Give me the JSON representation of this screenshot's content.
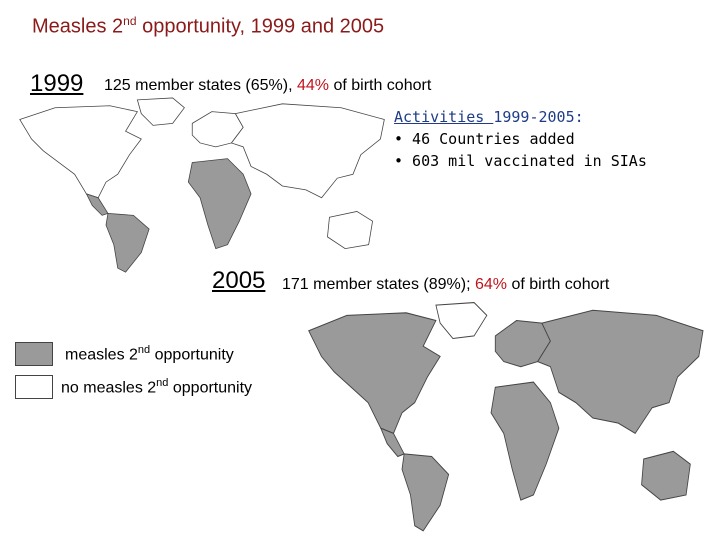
{
  "title": {
    "pre": "Measles 2",
    "sup": "nd",
    "post": " opportunity, 1999 and 2005"
  },
  "panel_1999": {
    "year": "1999",
    "stats_pre": "125 member states (65%), ",
    "stats_pct": "44%",
    "stats_post": " of birth cohort"
  },
  "activities": {
    "heading_underlined": "Activities ",
    "heading_rest": "1999-2005:",
    "items": [
      "• 46 Countries added",
      "• 603 mil vaccinated in SIAs"
    ]
  },
  "panel_2005": {
    "year": "2005",
    "stats_pre": "171 member states (89%); ",
    "stats_pct": "64%",
    "stats_post": " of birth cohort"
  },
  "legend": {
    "with_pre": "measles 2",
    "with_sup": "nd",
    "with_post": " opportunity",
    "without_pre": "no  measles 2",
    "without_sup": "nd",
    "without_post": " opportunity"
  },
  "colors": {
    "title": "#8b1a1a",
    "highlight": "#c0141c",
    "activities_heading": "#1f3c88",
    "country_with": "#9a9a9a",
    "country_without": "#ffffff",
    "border": "#444444"
  }
}
